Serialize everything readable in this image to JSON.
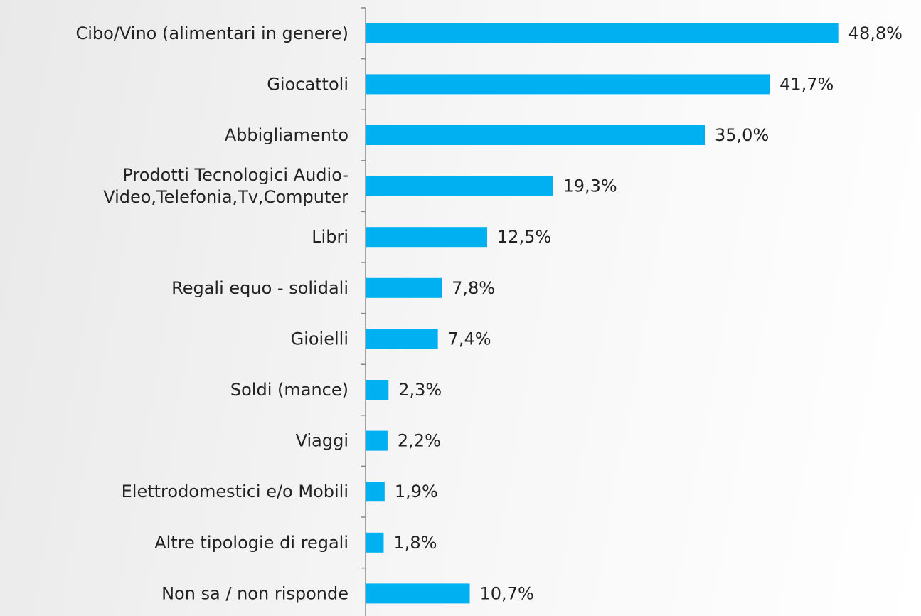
{
  "chart_data": {
    "type": "bar",
    "orientation": "horizontal",
    "categories": [
      "Cibo/Vino (alimentari in genere)",
      "Giocattoli",
      "Abbigliamento",
      "Prodotti Tecnologici Audio-\nVideo,Telefonia,Tv,Computer",
      "Libri",
      "Regali equo - solidali",
      "Gioielli",
      "Soldi (mance)",
      "Viaggi",
      "Elettrodomestici e/o Mobili",
      "Altre tipologie di regali",
      "Non sa / non risponde"
    ],
    "values": [
      48.8,
      41.7,
      35.0,
      19.3,
      12.5,
      7.8,
      7.4,
      2.3,
      2.2,
      1.9,
      1.8,
      10.7
    ],
    "value_labels": [
      "48,8%",
      "41,7%",
      "35,0%",
      "19,3%",
      "12,5%",
      "7,8%",
      "7,4%",
      "2,3%",
      "2,2%",
      "1,9%",
      "1,8%",
      "10,7%"
    ],
    "color": "#00b0f0"
  }
}
